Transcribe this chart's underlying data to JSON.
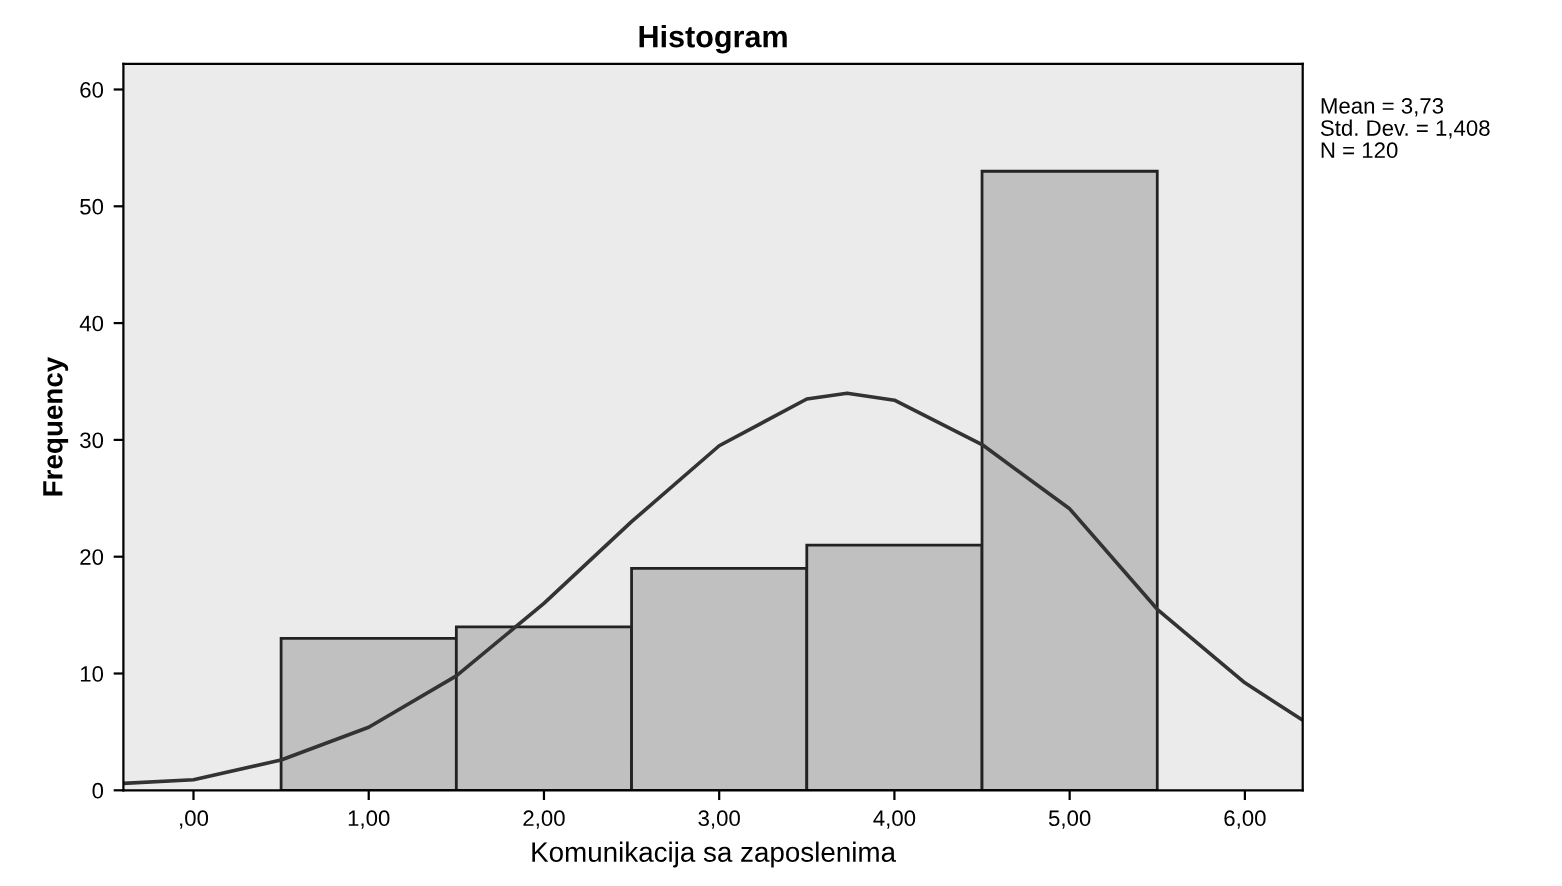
{
  "chart_data": {
    "type": "histogram",
    "title": "Histogram",
    "xlabel": "Komunikacija sa zaposlenima",
    "ylabel": "Frequency",
    "bins": [
      0.5,
      1.5,
      2.5,
      3.5,
      4.5,
      5.5
    ],
    "values": [
      13,
      14,
      19,
      21,
      53
    ],
    "color": "#c0c0c0",
    "series": [
      {
        "type": "line",
        "color": "#333333",
        "x": [
          -0.4,
          0,
          0.5,
          1,
          1.5,
          2,
          2.5,
          3,
          3.5,
          3.73,
          4,
          4.5,
          5,
          5.5,
          6,
          6.33
        ],
        "values": [
          0.6,
          0.9,
          2.6,
          5.4,
          9.8,
          16,
          23,
          29.5,
          33.5,
          34,
          33.4,
          29.6,
          24.1,
          15.5,
          9.2,
          6
        ]
      }
    ],
    "xlim": [
      -0.4,
      6.33
    ],
    "ylim": [
      0,
      62.2
    ],
    "xticks": [
      {
        "value": 0,
        "label": ",00"
      },
      {
        "value": 1,
        "label": "1,00"
      },
      {
        "value": 2,
        "label": "2,00"
      },
      {
        "value": 3,
        "label": "3,00"
      },
      {
        "value": 4,
        "label": "4,00"
      },
      {
        "value": 5,
        "label": "5,00"
      },
      {
        "value": 6,
        "label": "6,00"
      }
    ],
    "yticks": [
      0,
      10,
      20,
      30,
      40,
      50,
      60
    ],
    "grid": false,
    "annotations": [
      "Mean = 3,73",
      "Std. Dev. = 1,408",
      "N = 120"
    ]
  }
}
